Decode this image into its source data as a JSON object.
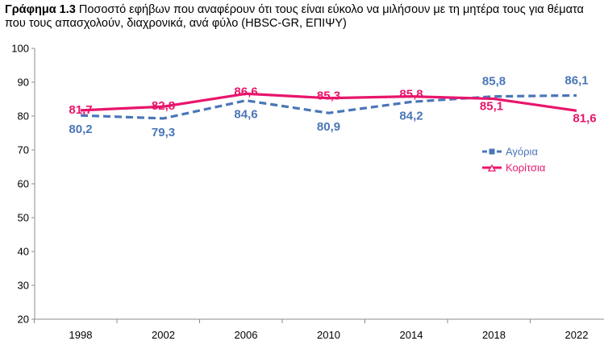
{
  "title_bold": "Γράφημα 1.3",
  "title_text": " Ποσοστό εφήβων που αναφέρουν ότι τους είναι εύκολο να μιλήσουν με τη μητέρα τους για θέματα που τους απασχολούν, διαχρονικά, ανά φύλο (HBSC-GR, ΕΠΙΨΥ)",
  "colors": {
    "boys": "#4a76b8",
    "girls": "#e8156b"
  },
  "chart_data": {
    "type": "line",
    "title": "Γράφημα 1.3 Ποσοστό εφήβων που αναφέρουν ότι τους είναι εύκολο να μιλήσουν με τη μητέρα τους για θέματα που τους απασχολούν, διαχρονικά, ανά φύλο (HBSC-GR, ΕΠΙΨΥ)",
    "categories": [
      "1998",
      "2002",
      "2006",
      "2010",
      "2014",
      "2018",
      "2022"
    ],
    "series": [
      {
        "name": "Αγόρια",
        "values": [
          80.2,
          79.3,
          84.6,
          80.9,
          84.2,
          85.8,
          86.1
        ],
        "labels": [
          "80,2",
          "79,3",
          "84,6",
          "80,9",
          "84,2",
          "85,8",
          "86,1"
        ],
        "color": "#4a76b8",
        "dash": true
      },
      {
        "name": "Κορίτσια",
        "values": [
          81.7,
          82.8,
          86.6,
          85.3,
          85.8,
          85.1,
          81.6
        ],
        "labels": [
          "81,7",
          "82,8",
          "86,6",
          "85,3",
          "85,8",
          "85,1",
          "81,6"
        ],
        "color": "#e8156b",
        "dash": false
      }
    ],
    "yticks": [
      "100",
      "90",
      "80",
      "70",
      "60",
      "50",
      "40",
      "30",
      "20"
    ],
    "ylim": [
      20,
      100
    ],
    "grid": false,
    "legend_position": "right"
  }
}
